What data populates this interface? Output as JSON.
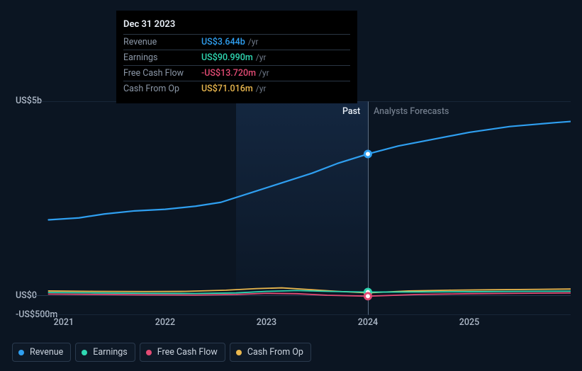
{
  "tooltip": {
    "date": "Dec 31 2023",
    "rows": [
      {
        "label": "Revenue",
        "value": "US$3.644b",
        "unit": "/yr",
        "color": "#2f9ff0"
      },
      {
        "label": "Earnings",
        "value": "US$90.990m",
        "unit": "/yr",
        "color": "#2fd8b3"
      },
      {
        "label": "Free Cash Flow",
        "value": "-US$13.720m",
        "unit": "/yr",
        "color": "#e34b74"
      },
      {
        "label": "Cash From Op",
        "value": "US$71.016m",
        "unit": "/yr",
        "color": "#e9b74e"
      }
    ]
  },
  "chart": {
    "type": "line",
    "background_color": "#0b1522",
    "x": {
      "ticks": [
        "2021",
        "2022",
        "2023",
        "2024",
        "2025"
      ],
      "min": 2020.7,
      "max": 2026.0
    },
    "y": {
      "min": -500,
      "max": 5000,
      "ticks": [
        {
          "v": 5000,
          "label": "US$5b"
        },
        {
          "v": 0,
          "label": "US$0"
        },
        {
          "v": -500,
          "label": "-US$500m"
        }
      ]
    },
    "band": {
      "from": 2022.7,
      "to": 2024.0
    },
    "hover_x": 2024.0,
    "divider_x": 2024.0,
    "divider_labels": {
      "past": "Past",
      "forecast": "Analysts Forecasts"
    },
    "series": [
      {
        "key": "revenue",
        "name": "Revenue",
        "color": "#2f9ff0",
        "width": 2.2,
        "points": [
          [
            2020.85,
            1950
          ],
          [
            2021.15,
            2000
          ],
          [
            2021.4,
            2100
          ],
          [
            2021.7,
            2180
          ],
          [
            2022.0,
            2220
          ],
          [
            2022.3,
            2300
          ],
          [
            2022.55,
            2400
          ],
          [
            2022.85,
            2650
          ],
          [
            2023.15,
            2900
          ],
          [
            2023.45,
            3150
          ],
          [
            2023.7,
            3400
          ],
          [
            2024.0,
            3644
          ],
          [
            2024.3,
            3850
          ],
          [
            2024.6,
            4000
          ],
          [
            2025.0,
            4200
          ],
          [
            2025.4,
            4350
          ],
          [
            2025.85,
            4450
          ],
          [
            2026.0,
            4480
          ]
        ],
        "dot_at_hover": 3644
      },
      {
        "key": "cashop",
        "name": "Cash From Op",
        "color": "#e9b74e",
        "width": 1.8,
        "points": [
          [
            2020.85,
            120
          ],
          [
            2021.3,
            110
          ],
          [
            2021.8,
            105
          ],
          [
            2022.2,
            110
          ],
          [
            2022.6,
            140
          ],
          [
            2022.9,
            180
          ],
          [
            2023.15,
            200
          ],
          [
            2023.4,
            160
          ],
          [
            2023.7,
            110
          ],
          [
            2024.0,
            71
          ],
          [
            2024.4,
            120
          ],
          [
            2024.8,
            140
          ],
          [
            2025.2,
            150
          ],
          [
            2025.6,
            160
          ],
          [
            2026.0,
            170
          ]
        ],
        "dot_at_hover": 71
      },
      {
        "key": "earnings",
        "name": "Earnings",
        "color": "#2fd8b3",
        "width": 1.8,
        "points": [
          [
            2020.85,
            80
          ],
          [
            2021.3,
            70
          ],
          [
            2021.8,
            60
          ],
          [
            2022.3,
            55
          ],
          [
            2022.7,
            70
          ],
          [
            2023.0,
            110
          ],
          [
            2023.3,
            130
          ],
          [
            2023.6,
            110
          ],
          [
            2024.0,
            91
          ],
          [
            2024.5,
            95
          ],
          [
            2025.0,
            100
          ],
          [
            2025.5,
            110
          ],
          [
            2026.0,
            115
          ]
        ],
        "dot_at_hover": 91
      },
      {
        "key": "fcf",
        "name": "Free Cash Flow",
        "color": "#e34b74",
        "width": 1.8,
        "points": [
          [
            2020.85,
            40
          ],
          [
            2021.3,
            30
          ],
          [
            2021.8,
            20
          ],
          [
            2022.3,
            15
          ],
          [
            2022.7,
            30
          ],
          [
            2023.0,
            60
          ],
          [
            2023.3,
            50
          ],
          [
            2023.6,
            10
          ],
          [
            2024.0,
            -14
          ],
          [
            2024.5,
            30
          ],
          [
            2025.0,
            50
          ],
          [
            2025.5,
            60
          ],
          [
            2026.0,
            70
          ]
        ],
        "dot_at_hover": -14
      }
    ]
  },
  "legend": [
    {
      "key": "revenue",
      "label": "Revenue",
      "color": "#2f9ff0"
    },
    {
      "key": "earnings",
      "label": "Earnings",
      "color": "#2fd8b3"
    },
    {
      "key": "fcf",
      "label": "Free Cash Flow",
      "color": "#e34b74"
    },
    {
      "key": "cashop",
      "label": "Cash From Op",
      "color": "#e9b74e"
    }
  ]
}
